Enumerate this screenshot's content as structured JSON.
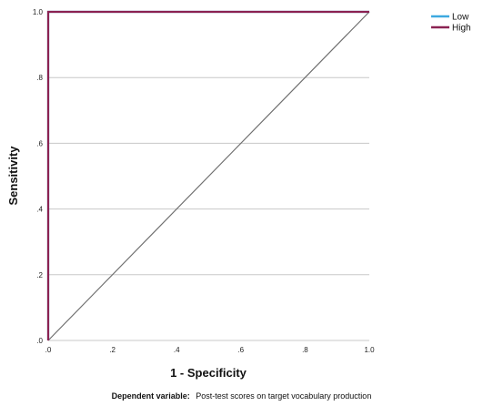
{
  "chart_data": {
    "type": "line",
    "xlabel": "1 - Specificity",
    "ylabel": "Sensitivity",
    "xlim": [
      0,
      1
    ],
    "ylim": [
      0,
      1
    ],
    "x_ticks": [
      ".0",
      ".2",
      ".4",
      ".6",
      ".8",
      "1.0"
    ],
    "y_ticks": [
      ".0",
      ".2",
      ".4",
      ".6",
      ".8",
      "1.0"
    ],
    "grid": "horizontal",
    "legend_position": "top-right",
    "series": [
      {
        "name": "Low",
        "color": "#3da9e0",
        "points": [
          [
            0,
            0
          ],
          [
            0,
            1
          ],
          [
            1,
            1
          ]
        ]
      },
      {
        "name": "High",
        "color": "#8b2252",
        "points": [
          [
            0,
            0
          ],
          [
            0,
            1
          ],
          [
            1,
            1
          ]
        ]
      }
    ],
    "reference_line": {
      "color": "#6e6e6e",
      "points": [
        [
          0,
          0
        ],
        [
          1,
          1
        ]
      ]
    }
  },
  "footnote": {
    "label": "Dependent variable:",
    "text": "Post-test scores on target vocabulary production"
  }
}
